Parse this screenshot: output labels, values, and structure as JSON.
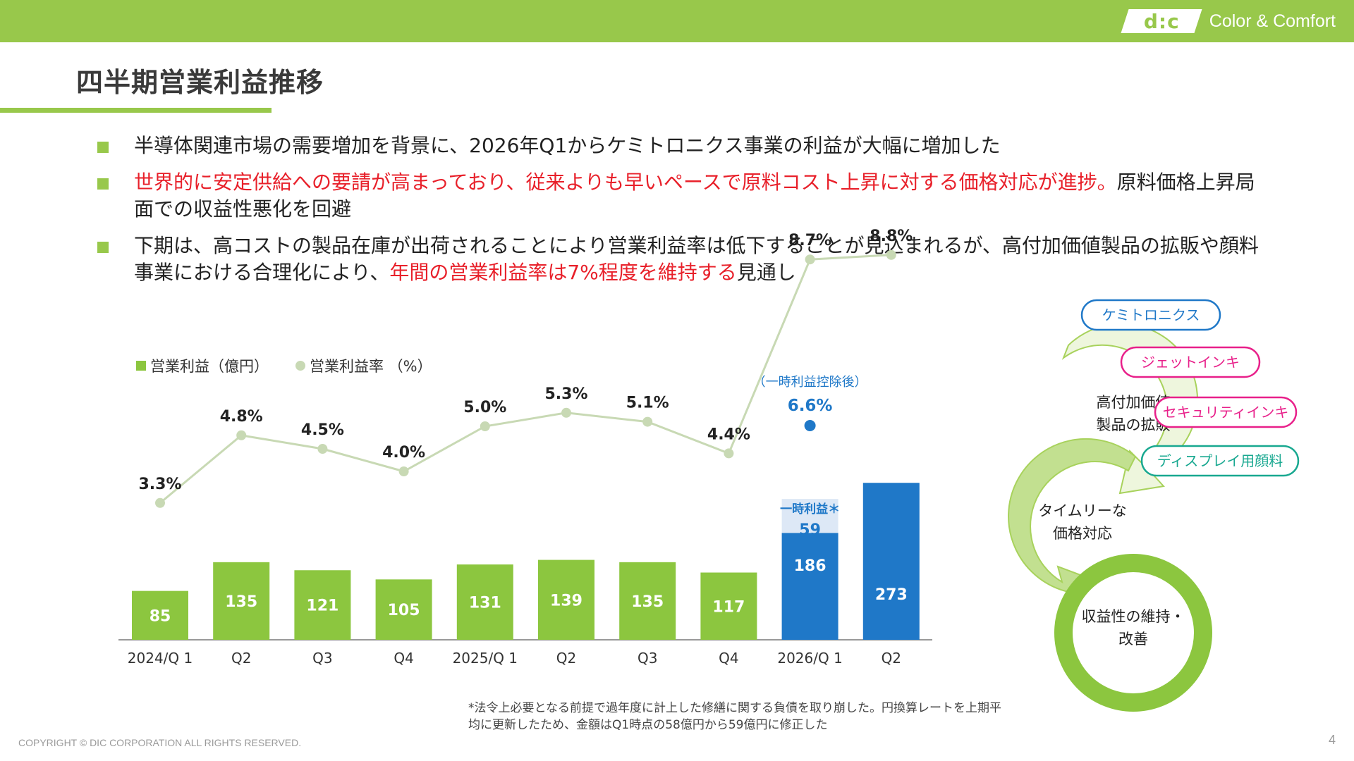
{
  "header": {
    "logo_text": "d:c",
    "tagline": "Color & Comfort",
    "brand_color": "#98c84b"
  },
  "page_title": "四半期営業利益推移",
  "bullets": [
    {
      "segments": [
        {
          "text": "半導体関連市場の需要増加を背景に、2026年Q1からケミトロニクス事業の利益が大幅に増加した",
          "highlight": false
        }
      ]
    },
    {
      "segments": [
        {
          "text": "世界的に安定供給への要請が高まっており、従来よりも早いペースで原料コスト上昇に対する価格対応が進捗。",
          "highlight": true
        },
        {
          "text": "原料価格上昇局面での収益性悪化を回避",
          "highlight": false
        }
      ]
    },
    {
      "segments": [
        {
          "text": "下期は、高コストの製品在庫が出荷されることにより営業利益率は低下することが見込まれるが、高付加価値製品の拡販や顔料事業における合理化により、",
          "highlight": false
        },
        {
          "text": "年間の営業利益率は7%程度を維持する",
          "highlight": true
        },
        {
          "text": "見通し",
          "highlight": false
        }
      ]
    }
  ],
  "chart_data": {
    "type": "bar",
    "categories": [
      "2024/Q 1",
      "Q2",
      "Q3",
      "Q4",
      "2025/Q 1",
      "Q2",
      "Q3",
      "Q4",
      "2026/Q 1",
      "Q2"
    ],
    "series": [
      {
        "name": "営業利益（億円）",
        "kind": "bar",
        "values": [
          85,
          135,
          121,
          105,
          131,
          139,
          135,
          117,
          186,
          273
        ],
        "colors": [
          "#8cc63f",
          "#8cc63f",
          "#8cc63f",
          "#8cc63f",
          "#8cc63f",
          "#8cc63f",
          "#8cc63f",
          "#8cc63f",
          "#1f78c8",
          "#1f78c8"
        ]
      },
      {
        "name": "一時利益＊",
        "kind": "bar-stack",
        "values": [
          0,
          0,
          0,
          0,
          0,
          0,
          0,
          0,
          59,
          0
        ],
        "color": "#dde8f6"
      },
      {
        "name": "営業利益率 （%）",
        "kind": "line",
        "values": [
          3.3,
          4.8,
          4.5,
          4.0,
          5.0,
          5.3,
          5.1,
          4.4,
          8.7,
          8.8
        ],
        "labels": [
          "3.3%",
          "4.8%",
          "4.5%",
          "4.0%",
          "5.0%",
          "5.3%",
          "5.1%",
          "4.4%",
          "8.7%",
          "8.8%"
        ],
        "color": "#c8d9b4"
      }
    ],
    "annotation": {
      "category_index": 8,
      "text": "（一時利益控除後）",
      "value": 6.6,
      "label": "6.6%",
      "color": "#1f78c8"
    },
    "stack_label": "一時利益＊",
    "colors": {
      "bar": "#8cc63f",
      "bar_highlight": "#1f78c8",
      "stack": "#dde8f6",
      "line": "#c8d9b4"
    },
    "legend_position": "top-left",
    "grid": false
  },
  "diagram": {
    "nodes": [
      "高付加価値\n製品の拡販",
      "タイムリーな\n価格対応",
      "収益性の維持・\n改善"
    ],
    "pills": [
      {
        "text": "ケミトロニクス",
        "color": "#1f78c8"
      },
      {
        "text": "ジェットインキ",
        "color": "#e8208a"
      },
      {
        "text": "セキュリティインキ",
        "color": "#e8208a"
      },
      {
        "text": "ディスプレイ用顔料",
        "color": "#18a890"
      }
    ]
  },
  "footnote": "*法令上必要となる前提で過年度に計上した修繕に関する負債を取り崩した。円換算レートを上期平均に更新したため、金額はQ1時点の58億円から59億円に修正した",
  "copyright": "COPYRIGHT © DIC CORPORATION ALL RIGHTS RESERVED.",
  "page_number": "4"
}
